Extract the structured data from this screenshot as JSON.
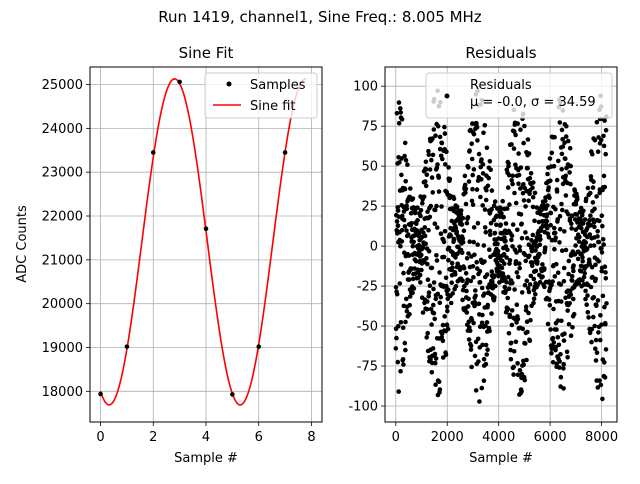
{
  "suptitle": "Run 1419, channel1, Sine Freq.: 8.005 MHz",
  "chart_data": [
    {
      "type": "line",
      "title": "Sine Fit",
      "xlabel": "Sample #",
      "ylabel": "ADC Counts",
      "xlim": [
        -0.4,
        8.4
      ],
      "ylim": [
        17300,
        25400
      ],
      "xticks": [
        0,
        2,
        4,
        6,
        8
      ],
      "yticks": [
        18000,
        19000,
        20000,
        21000,
        22000,
        23000,
        24000,
        25000
      ],
      "grid": true,
      "legend": "upper right",
      "legend_entries": [
        "Samples",
        "Sine fit"
      ],
      "series": [
        {
          "name": "Samples",
          "marker": "point",
          "color": "#000000",
          "x": [
            0,
            1,
            2,
            3,
            4,
            5,
            6,
            7
          ],
          "y": [
            17940,
            19020,
            23450,
            25060,
            21710,
            17930,
            19020,
            23450
          ]
        },
        {
          "name": "Sine fit",
          "color": "#ff0000",
          "fit": {
            "offset": 21410,
            "amplitude": 3720,
            "period": 4.97,
            "peak_x": 2.81,
            "x_range": [
              0,
              7.8
            ]
          }
        }
      ]
    },
    {
      "type": "scatter",
      "title": "Residuals",
      "xlabel": "Sample #",
      "xlim": [
        -420,
        8600
      ],
      "ylim": [
        -110,
        112
      ],
      "xticks": [
        0,
        2000,
        4000,
        6000,
        8000
      ],
      "yticks": [
        -100,
        -75,
        -50,
        -25,
        0,
        25,
        50,
        75,
        100
      ],
      "grid": true,
      "legend": "upper right",
      "legend_entries": [
        "Residuals",
        "μ = -0.0, σ = 34.59"
      ],
      "series": [
        {
          "name": "Residuals",
          "color": "#000000",
          "x_range": [
            0,
            8191
          ],
          "mean": -0.0,
          "std": 34.59,
          "envelope_period": 1600
        }
      ]
    }
  ]
}
